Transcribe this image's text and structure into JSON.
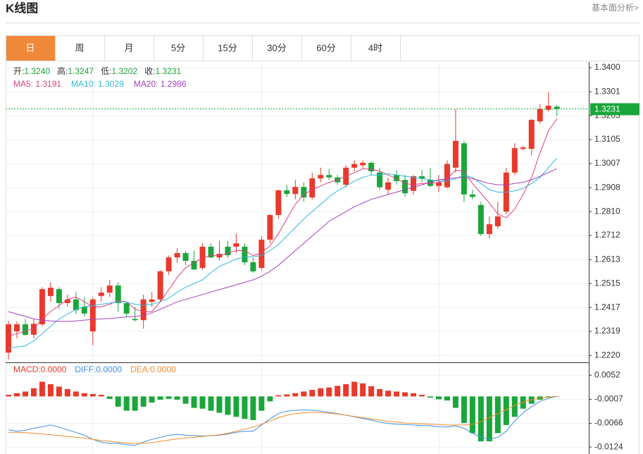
{
  "header": {
    "title": "K线图",
    "link": "基本面分析>"
  },
  "tabs": [
    "日",
    "周",
    "月",
    "5分",
    "15分",
    "30分",
    "60分",
    "4时"
  ],
  "active_tab": 0,
  "chart_data": [
    {
      "type": "candlestick",
      "info": [
        {
          "label": "开:",
          "value": "1.3240"
        },
        {
          "label": "高:",
          "value": "1.3247"
        },
        {
          "label": "低:",
          "value": "1.3202"
        },
        {
          "label": "收:",
          "value": "1.3231"
        }
      ],
      "info_color": "#1aa63a",
      "up_color": "#e8392b",
      "down_color": "#1aa63a",
      "open": [
        1.2232,
        1.2319,
        1.2348,
        1.2305,
        1.2348,
        1.2464,
        1.2492,
        1.2435,
        1.245,
        1.242,
        1.2319,
        1.2464,
        1.2478,
        1.2507,
        1.2435,
        1.237,
        1.2365,
        1.244,
        1.245,
        1.2565,
        1.2622,
        1.264,
        1.2608,
        1.2579,
        1.2666,
        1.2622,
        1.2666,
        1.2666,
        1.2666,
        1.2602,
        1.2579,
        1.2695,
        1.2796,
        1.2897,
        1.2882,
        1.2911,
        1.2868,
        1.2946,
        1.296,
        1.295,
        1.292,
        1.299,
        1.3,
        1.301,
        1.297,
        1.29,
        1.296,
        1.294,
        1.2895,
        1.2955,
        1.294,
        1.2915,
        1.291,
        1.299,
        1.309,
        1.288,
        1.2837,
        1.2718,
        1.275,
        1.281,
        1.297,
        1.3067,
        1.3067,
        1.318,
        1.3227,
        1.324
      ],
      "high": [
        1.2362,
        1.236,
        1.237,
        1.237,
        1.25,
        1.252,
        1.25,
        1.247,
        1.248,
        1.246,
        1.246,
        1.25,
        1.253,
        1.252,
        1.244,
        1.242,
        1.247,
        1.248,
        1.257,
        1.263,
        1.266,
        1.265,
        1.265,
        1.268,
        1.268,
        1.269,
        1.269,
        1.272,
        1.268,
        1.262,
        1.271,
        1.28,
        1.29,
        1.292,
        1.294,
        1.293,
        1.297,
        1.299,
        1.2985,
        1.296,
        1.3,
        1.302,
        1.302,
        1.3015,
        1.299,
        1.295,
        1.298,
        1.296,
        1.296,
        1.298,
        1.299,
        1.296,
        1.302,
        1.323,
        1.31,
        1.29,
        1.285,
        1.279,
        1.285,
        1.299,
        1.309,
        1.308,
        1.319,
        1.325,
        1.33,
        1.3247
      ],
      "low": [
        1.2203,
        1.229,
        1.23,
        1.229,
        1.234,
        1.244,
        1.241,
        1.242,
        1.239,
        1.238,
        1.2262,
        1.244,
        1.246,
        1.24,
        1.238,
        1.236,
        1.233,
        1.242,
        1.244,
        1.255,
        1.26,
        1.259,
        1.257,
        1.257,
        1.262,
        1.261,
        1.262,
        1.264,
        1.259,
        1.256,
        1.257,
        1.268,
        1.278,
        1.287,
        1.286,
        1.285,
        1.286,
        1.293,
        1.294,
        1.292,
        1.291,
        1.2975,
        1.2985,
        1.296,
        1.29,
        1.288,
        1.292,
        1.287,
        1.288,
        1.293,
        1.291,
        1.289,
        1.2905,
        1.297,
        1.285,
        1.286,
        1.271,
        1.27,
        1.274,
        1.28,
        1.296,
        1.306,
        1.304,
        1.317,
        1.322,
        1.3202
      ],
      "close": [
        1.2348,
        1.2348,
        1.2305,
        1.235,
        1.2492,
        1.2498,
        1.2435,
        1.245,
        1.2406,
        1.2392,
        1.245,
        1.2478,
        1.2507,
        1.2435,
        1.2392,
        1.2365,
        1.245,
        1.245,
        1.2565,
        1.2622,
        1.264,
        1.2608,
        1.2573,
        1.2666,
        1.2622,
        1.2637,
        1.2631,
        1.268,
        1.2602,
        1.2565,
        1.2695,
        1.2796,
        1.2897,
        1.2882,
        1.2911,
        1.2868,
        1.2946,
        1.296,
        1.295,
        1.293,
        1.299,
        1.3005,
        1.301,
        1.2975,
        1.291,
        1.293,
        1.2935,
        1.2885,
        1.2955,
        1.2945,
        1.2915,
        1.293,
        1.3005,
        1.31,
        1.288,
        1.287,
        1.2718,
        1.2758,
        1.279,
        1.297,
        1.307,
        1.3073,
        1.3186,
        1.323,
        1.3244,
        1.3231
      ],
      "series": [
        {
          "name": "MA5: 1.3191",
          "color": "#e0407f",
          "values": [
            1.23,
            1.231,
            1.232,
            1.233,
            1.237,
            1.24,
            1.2425,
            1.245,
            1.246,
            1.244,
            1.242,
            1.242,
            1.243,
            1.2445,
            1.244,
            1.241,
            1.24,
            1.24,
            1.244,
            1.249,
            1.254,
            1.258,
            1.26,
            1.262,
            1.263,
            1.263,
            1.264,
            1.265,
            1.265,
            1.263,
            1.264,
            1.267,
            1.272,
            1.278,
            1.284,
            1.288,
            1.29,
            1.2915,
            1.293,
            1.294,
            1.2955,
            1.297,
            1.2985,
            1.2985,
            1.2975,
            1.296,
            1.2945,
            1.2925,
            1.292,
            1.2925,
            1.2925,
            1.293,
            1.2945,
            1.298,
            1.2975,
            1.2925,
            1.2885,
            1.2845,
            1.28,
            1.2785,
            1.282,
            1.288,
            1.295,
            1.305,
            1.314,
            1.3191
          ]
        },
        {
          "name": "MA10: 1.3029",
          "color": "#2fb8d8",
          "values": [
            1.225,
            1.2255,
            1.226,
            1.228,
            1.231,
            1.234,
            1.237,
            1.239,
            1.241,
            1.242,
            1.2425,
            1.243,
            1.2435,
            1.244,
            1.244,
            1.243,
            1.2425,
            1.243,
            1.244,
            1.2455,
            1.248,
            1.25,
            1.2515,
            1.253,
            1.256,
            1.2585,
            1.26,
            1.2615,
            1.2625,
            1.2625,
            1.263,
            1.265,
            1.2675,
            1.271,
            1.2745,
            1.278,
            1.281,
            1.284,
            1.287,
            1.2895,
            1.2915,
            1.2935,
            1.295,
            1.296,
            1.296,
            1.2965,
            1.296,
            1.2955,
            1.295,
            1.2945,
            1.294,
            1.2935,
            1.2935,
            1.2945,
            1.296,
            1.295,
            1.2925,
            1.29,
            1.289,
            1.289,
            1.2895,
            1.2905,
            1.2925,
            1.295,
            1.299,
            1.3029
          ]
        },
        {
          "name": "MA20: 1.2986",
          "color": "#a441c1",
          "values": [
            1.24,
            1.239,
            1.238,
            1.237,
            1.2365,
            1.2362,
            1.236,
            1.236,
            1.2362,
            1.2365,
            1.2368,
            1.237,
            1.2372,
            1.2375,
            1.2378,
            1.238,
            1.2385,
            1.2395,
            1.241,
            1.2425,
            1.244,
            1.245,
            1.246,
            1.247,
            1.248,
            1.249,
            1.25,
            1.251,
            1.252,
            1.253,
            1.2545,
            1.2565,
            1.259,
            1.262,
            1.265,
            1.268,
            1.271,
            1.274,
            1.277,
            1.279,
            1.281,
            1.283,
            1.2845,
            1.286,
            1.287,
            1.288,
            1.289,
            1.29,
            1.291,
            1.292,
            1.293,
            1.294,
            1.2945,
            1.2948,
            1.295,
            1.2945,
            1.2935,
            1.2925,
            1.292,
            1.292,
            1.2925,
            1.293,
            1.294,
            1.2955,
            1.297,
            1.2986
          ]
        }
      ],
      "ylim": [
        1.2192,
        1.3423
      ],
      "yticks": [
        {
          "value": 1.34,
          "label": "1.3400"
        },
        1.3301,
        1.3203,
        1.3105,
        1.3007,
        1.2908,
        {
          "value": 1.281,
          "label": "1.2810"
        },
        1.2712,
        1.2613,
        1.2515,
        1.2417,
        1.2319,
        {
          "value": 1.222,
          "label": "1.2220"
        }
      ],
      "last_price": 1.3231,
      "last_price_color": "#1aa63a",
      "grid": true
    },
    {
      "type": "macd",
      "name": "MACD:0.0000",
      "up_color": "#e8392b",
      "down_color": "#1aa63a",
      "values": [
        0.0004,
        0.0008,
        0.0012,
        0.002,
        0.0036,
        0.003,
        0.0024,
        0.0018,
        0.0012,
        0.0008,
        0.0006,
        0.0004,
        -0.0006,
        -0.0025,
        -0.0035,
        -0.0035,
        -0.0025,
        -0.0015,
        -0.0008,
        -0.0006,
        -0.0008,
        -0.0018,
        -0.0028,
        -0.003,
        -0.0035,
        -0.004,
        -0.0045,
        -0.005,
        -0.0055,
        -0.0058,
        -0.0035,
        -0.0012,
        0.0003,
        0.0005,
        0.0008,
        0.0012,
        0.0016,
        0.002,
        0.0022,
        0.0026,
        0.003,
        0.0036,
        0.0032,
        0.0025,
        0.0018,
        0.0014,
        0.0012,
        0.001,
        0.0008,
        0.0004,
        -0.0003,
        -0.0007,
        -0.001,
        -0.0028,
        -0.0065,
        -0.009,
        -0.011,
        -0.011,
        -0.009,
        -0.007,
        -0.005,
        -0.003,
        -0.0018,
        -0.0008,
        -0.0003,
        0
      ],
      "series": [
        {
          "name": "DIFF:0.0000",
          "color": "#3d8fe0",
          "values": [
            -0.0082,
            -0.0085,
            -0.0083,
            -0.0078,
            -0.0074,
            -0.007,
            -0.0075,
            -0.0082,
            -0.0088,
            -0.0095,
            -0.0105,
            -0.0112,
            -0.0115,
            -0.0115,
            -0.0118,
            -0.012,
            -0.0112,
            -0.0105,
            -0.01,
            -0.0095,
            -0.0093,
            -0.0095,
            -0.0096,
            -0.0097,
            -0.0096,
            -0.0095,
            -0.0092,
            -0.0088,
            -0.0085,
            -0.0085,
            -0.007,
            -0.0055,
            -0.0042,
            -0.0036,
            -0.0034,
            -0.0033,
            -0.0034,
            -0.0036,
            -0.0039,
            -0.0042,
            -0.0046,
            -0.005,
            -0.0054,
            -0.0058,
            -0.0063,
            -0.0066,
            -0.0068,
            -0.0069,
            -0.007,
            -0.0071,
            -0.0072,
            -0.0074,
            -0.0075,
            -0.0072,
            -0.0078,
            -0.009,
            -0.01,
            -0.0105,
            -0.01,
            -0.0085,
            -0.006,
            -0.004,
            -0.0025,
            -0.0012,
            -0.0005,
            0
          ]
        },
        {
          "name": "DEA:0.0000",
          "color": "#f08c28",
          "values": [
            -0.0088,
            -0.0088,
            -0.0089,
            -0.009,
            -0.0092,
            -0.0094,
            -0.0096,
            -0.0098,
            -0.01,
            -0.0102,
            -0.0105,
            -0.0108,
            -0.011,
            -0.0112,
            -0.0114,
            -0.0115,
            -0.0115,
            -0.0113,
            -0.011,
            -0.0107,
            -0.0104,
            -0.0102,
            -0.01,
            -0.0098,
            -0.0096,
            -0.0094,
            -0.009,
            -0.0085,
            -0.008,
            -0.0075,
            -0.0068,
            -0.006,
            -0.0052,
            -0.0046,
            -0.0042,
            -0.004,
            -0.0039,
            -0.004,
            -0.0041,
            -0.0043,
            -0.0046,
            -0.0049,
            -0.0052,
            -0.0055,
            -0.0058,
            -0.0061,
            -0.0063,
            -0.0065,
            -0.0066,
            -0.0067,
            -0.0068,
            -0.0069,
            -0.007,
            -0.007,
            -0.007,
            -0.0068,
            -0.0062,
            -0.0052,
            -0.0042,
            -0.0032,
            -0.0022,
            -0.0014,
            -0.0008,
            -0.0004,
            -0.0002,
            0
          ]
        }
      ],
      "ylim": [
        -0.0141,
        0.008
      ],
      "yticks": [
        0.0052,
        -0.0007,
        -0.0066,
        -0.0124
      ],
      "grid": true
    }
  ]
}
